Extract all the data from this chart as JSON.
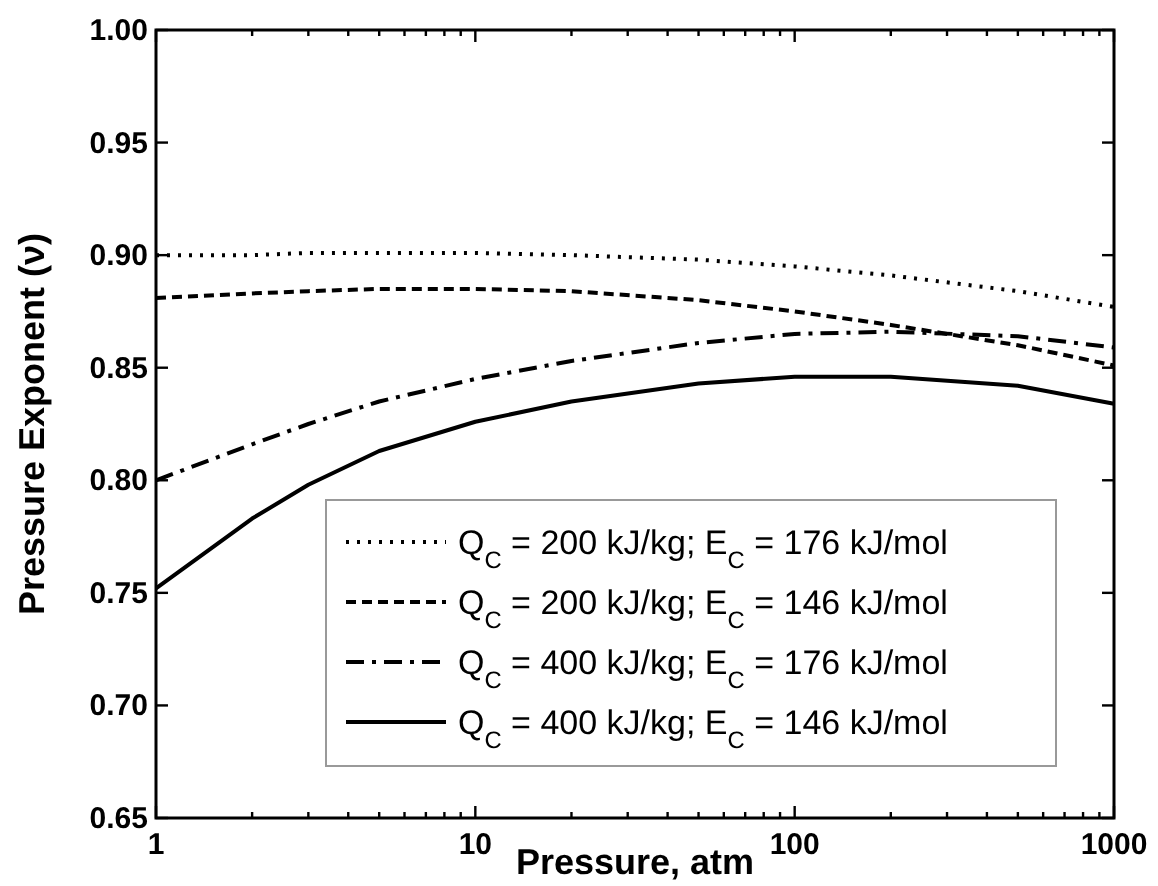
{
  "chart_data": {
    "type": "line",
    "xlabel": "Pressure, atm",
    "ylabel": "Pressure Exponent (ν)",
    "log": "x",
    "xlim": [
      1,
      1000
    ],
    "ylim": [
      0.65,
      1.0
    ],
    "xticks": [
      1,
      {
        "value": 2,
        "label": null
      },
      {
        "value": 3,
        "label": null
      },
      {
        "value": 4,
        "label": null
      },
      {
        "value": 5,
        "label": null
      },
      {
        "value": 6,
        "label": null
      },
      {
        "value": 7,
        "label": null
      },
      {
        "value": 8,
        "label": null
      },
      {
        "value": 9,
        "label": null
      },
      10,
      {
        "value": 20,
        "label": null
      },
      {
        "value": 30,
        "label": null
      },
      {
        "value": 40,
        "label": null
      },
      {
        "value": 50,
        "label": null
      },
      {
        "value": 60,
        "label": null
      },
      {
        "value": 70,
        "label": null
      },
      {
        "value": 80,
        "label": null
      },
      {
        "value": 90,
        "label": null
      },
      100,
      {
        "value": 200,
        "label": null
      },
      {
        "value": 300,
        "label": null
      },
      {
        "value": 400,
        "label": null
      },
      {
        "value": 500,
        "label": null
      },
      {
        "value": 600,
        "label": null
      },
      {
        "value": 700,
        "label": null
      },
      {
        "value": 800,
        "label": null
      },
      {
        "value": 900,
        "label": null
      },
      1000
    ],
    "yticks": [
      0.65,
      {
        "value": 0.7,
        "label": "0.70"
      },
      0.75,
      {
        "value": 0.8,
        "label": "0.80"
      },
      0.85,
      {
        "value": 0.9,
        "label": "0.90"
      },
      0.95,
      {
        "value": 1.0,
        "label": "1.00"
      }
    ],
    "x": [
      1,
      2,
      3,
      5,
      10,
      20,
      50,
      100,
      200,
      500,
      1000
    ],
    "grid": false,
    "legend": "bottom right",
    "marker": "none",
    "series": [
      {
        "name": "Q$_{C}$ = 200 kJ/kg; E$_{C}$ = 176 kJ/mol",
        "color": "#000000",
        "line_style": "dotted",
        "values": [
          0.9,
          0.9,
          0.901,
          0.901,
          0.901,
          0.9,
          0.898,
          0.895,
          0.891,
          0.884,
          0.877
        ]
      },
      {
        "name": "Q$_{C}$ = 200 kJ/kg; E$_{C}$ = 146 kJ/mol",
        "color": "#000000",
        "line_style": "dashed",
        "values": [
          0.881,
          0.883,
          0.884,
          0.885,
          0.885,
          0.884,
          0.88,
          0.875,
          0.869,
          0.86,
          0.851
        ]
      },
      {
        "name": "Q$_{C}$ = 400 kJ/kg; E$_{C}$ = 176 kJ/mol",
        "color": "#000000",
        "line_style": "dashdot",
        "values": [
          0.8,
          0.816,
          0.825,
          0.835,
          0.845,
          0.853,
          0.861,
          0.865,
          0.866,
          0.864,
          0.859
        ]
      },
      {
        "name": "Q$_{C}$ = 400 kJ/kg; E$_{C}$ = 146 kJ/mol",
        "color": "#000000",
        "line_style": "solid",
        "values": [
          0.752,
          0.783,
          0.798,
          0.813,
          0.826,
          0.835,
          0.843,
          0.846,
          0.846,
          0.842,
          0.834
        ]
      }
    ]
  }
}
